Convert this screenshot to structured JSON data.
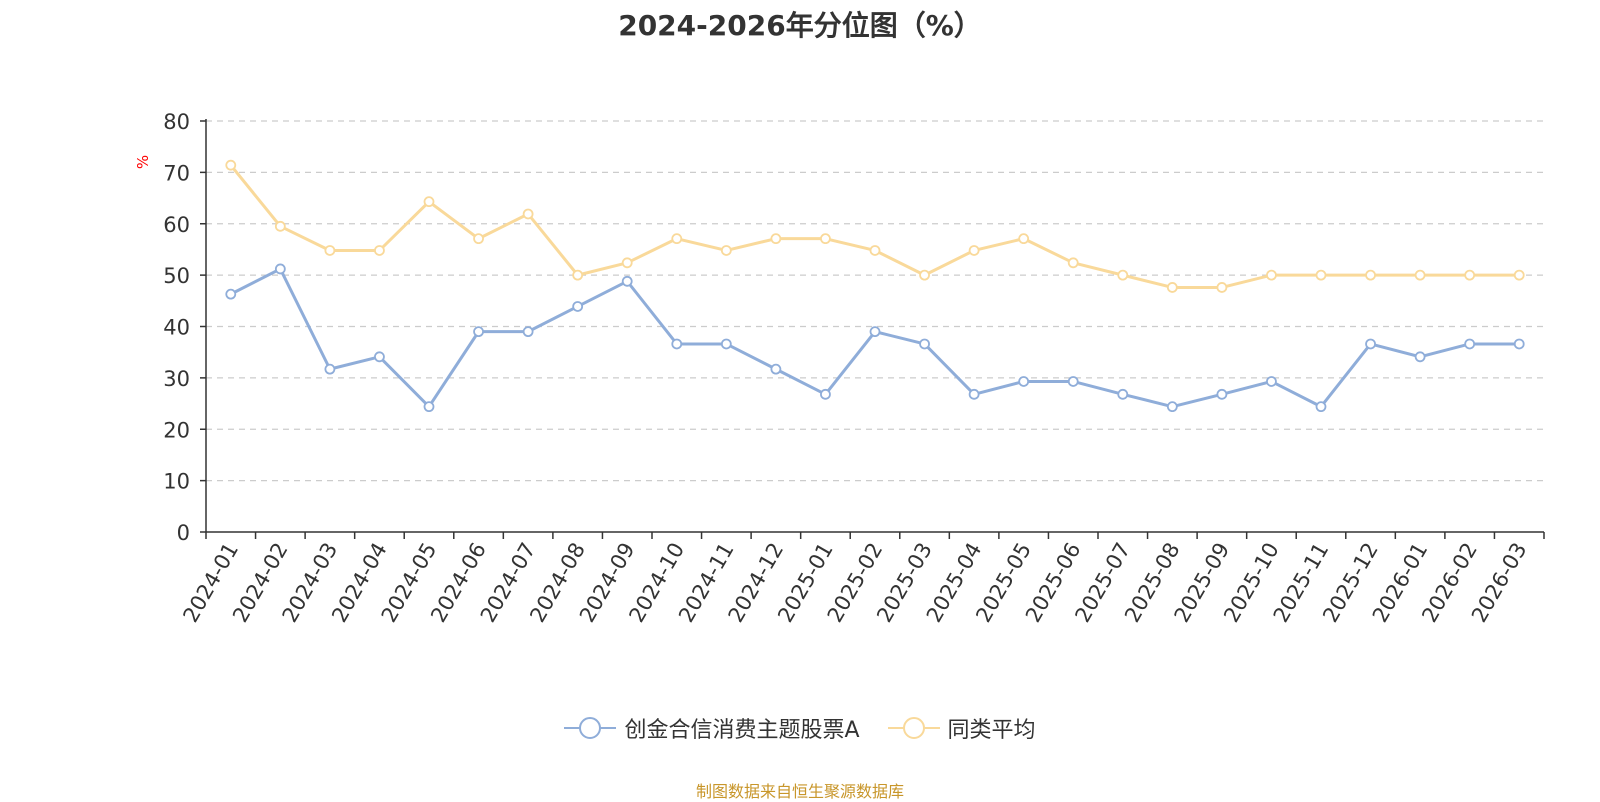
{
  "chart_data": {
    "type": "line",
    "title": "2024-2026年分位图（%）",
    "ylabel": "%",
    "ylim": [
      0,
      80
    ],
    "yticks": [
      0,
      10,
      20,
      30,
      40,
      50,
      60,
      70,
      80
    ],
    "grid": true,
    "legend_position": "bottom",
    "categories": [
      "2024-01",
      "2024-02",
      "2024-03",
      "2024-04",
      "2024-05",
      "2024-06",
      "2024-07",
      "2024-08",
      "2024-09",
      "2024-10",
      "2024-11",
      "2024-12",
      "2025-01",
      "2025-02",
      "2025-03",
      "2025-04",
      "2025-05",
      "2025-06",
      "2025-07",
      "2025-08",
      "2025-09",
      "2025-10",
      "2025-11",
      "2025-12",
      "2026-01",
      "2026-02",
      "2026-03"
    ],
    "series": [
      {
        "name": "创金合信消费主题股票A",
        "color": "#8fadd9",
        "values": [
          46.3,
          51.2,
          31.7,
          34.1,
          24.4,
          39.0,
          39.0,
          43.9,
          48.8,
          36.6,
          36.6,
          31.7,
          26.8,
          39.0,
          36.6,
          26.8,
          29.3,
          29.3,
          26.8,
          24.4,
          26.8,
          29.3,
          24.4,
          36.6,
          34.1,
          36.6,
          36.6
        ]
      },
      {
        "name": "同类平均",
        "color": "#f9d99a",
        "values": [
          71.4,
          59.5,
          54.8,
          54.8,
          64.3,
          57.1,
          61.9,
          50.0,
          52.4,
          57.1,
          54.8,
          57.1,
          57.1,
          54.8,
          50.0,
          54.8,
          57.1,
          52.4,
          50.0,
          47.6,
          47.6,
          50.0,
          50.0,
          50.0,
          50.0,
          50.0,
          50.0
        ]
      }
    ]
  },
  "source_note": "制图数据来自恒生聚源数据库"
}
